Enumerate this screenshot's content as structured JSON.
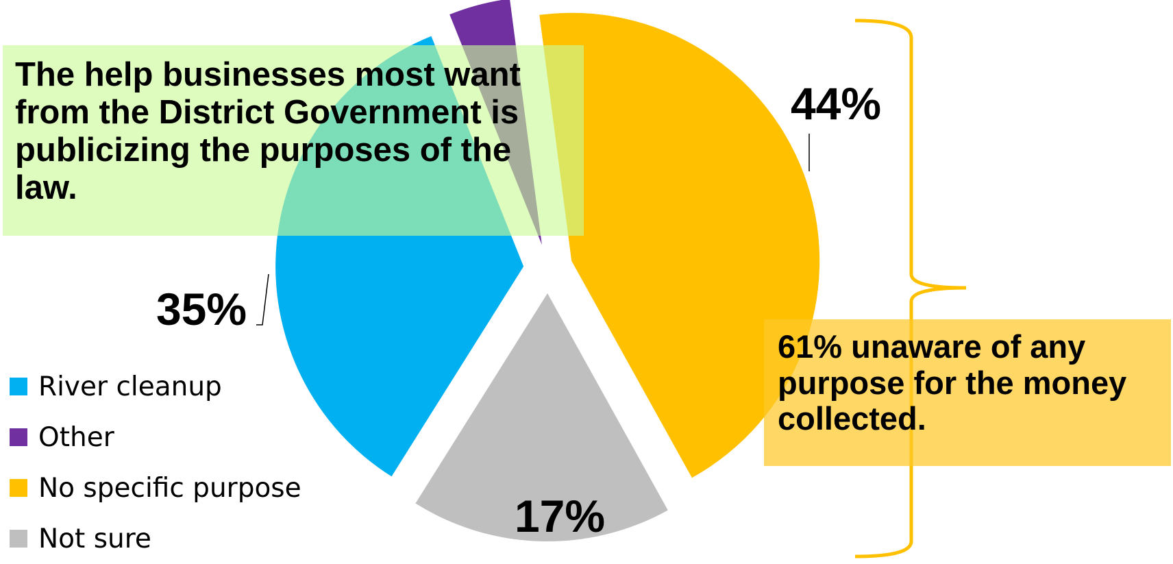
{
  "chart_data": {
    "type": "pie",
    "exploded": true,
    "slices": [
      {
        "name": "No specific purpose",
        "value": 44,
        "label": "44%",
        "color": "#FFC000"
      },
      {
        "name": "Not sure",
        "value": 17,
        "label": "17%",
        "color": "#BFBFBF"
      },
      {
        "name": "River cleanup",
        "value": 35,
        "label": "35%",
        "color": "#00B0F0"
      },
      {
        "name": "Other",
        "value": 4,
        "label": "",
        "color": "#7030A0"
      }
    ],
    "legend": [
      "River cleanup",
      "Other",
      "No specific purpose",
      "Not sure"
    ],
    "legend_position": "left"
  },
  "annotations": {
    "top_left": "The help businesses most want from the District Government is publicizing the purposes of the law.",
    "bottom_right": "61% unaware of any purpose for the money collected."
  },
  "colors": {
    "bracket": "#FFC000",
    "callout_green": "#C8FA96",
    "callout_yellow": "#FFC828"
  }
}
